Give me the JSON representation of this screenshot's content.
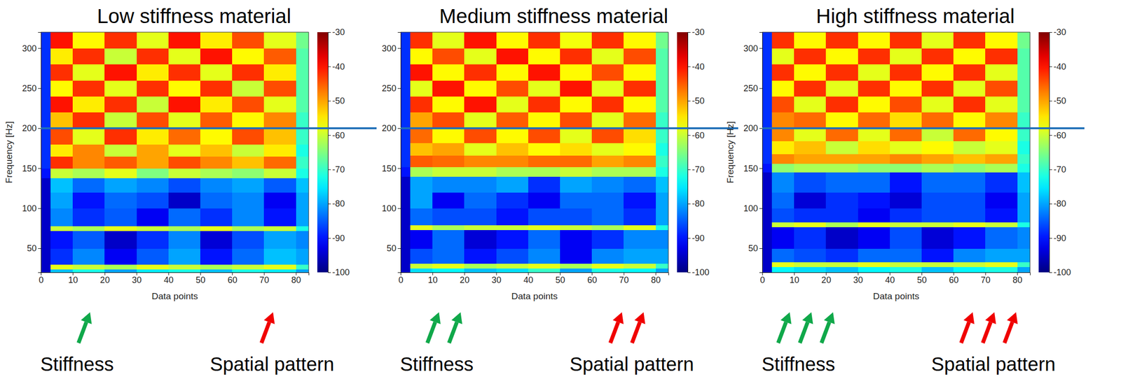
{
  "chart_data": [
    {
      "type": "heatmap",
      "title": "Low stiffness material",
      "x_label": "Data points",
      "y_label": "Frequency [Hz]",
      "xlim": [
        0,
        84
      ],
      "ylim": [
        20,
        320
      ],
      "xticks": [
        0,
        10,
        20,
        30,
        40,
        50,
        60,
        70,
        80
      ],
      "yticks": [
        50,
        100,
        150,
        200,
        250,
        300
      ],
      "x_edges": [
        0,
        3,
        10,
        20,
        30,
        40,
        50,
        60,
        70,
        80,
        84
      ],
      "y_edges": [
        20,
        24,
        30,
        50,
        72,
        78,
        100,
        120,
        138,
        150,
        165,
        180,
        200,
        220,
        240,
        260,
        280,
        300,
        320
      ],
      "cells": [
        [
          -95,
          -78,
          -72,
          -80,
          -75,
          -72,
          -78,
          -72,
          -75,
          -80
        ],
        [
          -95,
          -58,
          -60,
          -62,
          -58,
          -60,
          -62,
          -60,
          -58,
          -70
        ],
        [
          -95,
          -88,
          -82,
          -92,
          -85,
          -80,
          -90,
          -84,
          -78,
          -80
        ],
        [
          -95,
          -90,
          -85,
          -95,
          -88,
          -82,
          -94,
          -86,
          -80,
          -82
        ],
        [
          -95,
          -60,
          -62,
          -58,
          -60,
          -62,
          -58,
          -62,
          -60,
          -72
        ],
        [
          -95,
          -82,
          -88,
          -85,
          -92,
          -84,
          -88,
          -82,
          -90,
          -80
        ],
        [
          -95,
          -80,
          -90,
          -84,
          -86,
          -95,
          -84,
          -82,
          -92,
          -80
        ],
        [
          -95,
          -78,
          -84,
          -80,
          -82,
          -86,
          -82,
          -80,
          -85,
          -78
        ],
        [
          -90,
          -60,
          -62,
          -58,
          -65,
          -60,
          -62,
          -64,
          -60,
          -72
        ],
        [
          -88,
          -42,
          -48,
          -45,
          -50,
          -44,
          -48,
          -52,
          -46,
          -70
        ],
        [
          -88,
          -55,
          -48,
          -60,
          -50,
          -58,
          -52,
          -60,
          -55,
          -72
        ],
        [
          -88,
          -44,
          -58,
          -42,
          -55,
          -46,
          -56,
          -44,
          -52,
          -70
        ],
        [
          -88,
          -52,
          -42,
          -60,
          -44,
          -58,
          -45,
          -56,
          -48,
          -70
        ],
        [
          -88,
          -40,
          -55,
          -42,
          -60,
          -40,
          -55,
          -44,
          -58,
          -68
        ],
        [
          -88,
          -56,
          -42,
          -58,
          -42,
          -56,
          -42,
          -60,
          -44,
          -68
        ],
        [
          -88,
          -42,
          -58,
          -40,
          -55,
          -42,
          -58,
          -42,
          -55,
          -68
        ],
        [
          -88,
          -55,
          -42,
          -60,
          -42,
          -58,
          -40,
          -56,
          -45,
          -68
        ],
        [
          -88,
          -40,
          -56,
          -42,
          -58,
          -40,
          -55,
          -44,
          -58,
          -66
        ]
      ],
      "colorbar_range": [
        -100,
        -30
      ],
      "colorbar_ticks": [
        -100,
        -90,
        -80,
        -70,
        -60,
        -50,
        -40,
        -30
      ],
      "hline": 200,
      "arrows": 1,
      "annotations": [
        "Stiffness",
        "Spatial pattern"
      ]
    },
    {
      "type": "heatmap",
      "title": "Medium stiffness material",
      "x_label": "Data points",
      "xlim": [
        0,
        84
      ],
      "ylim": [
        20,
        320
      ],
      "xticks": [
        0,
        10,
        20,
        30,
        40,
        50,
        60,
        70,
        80
      ],
      "yticks": [
        50,
        100,
        150,
        200,
        250,
        300
      ],
      "x_edges": [
        0,
        3,
        10,
        20,
        30,
        40,
        50,
        60,
        70,
        80,
        84
      ],
      "y_edges": [
        20,
        25,
        31,
        50,
        73,
        79,
        100,
        120,
        140,
        152,
        166,
        182,
        200,
        220,
        240,
        260,
        280,
        300,
        320
      ],
      "cells": [
        [
          -95,
          -76,
          -74,
          -78,
          -76,
          -70,
          -80,
          -72,
          -74,
          -80
        ],
        [
          -95,
          -60,
          -58,
          -62,
          -60,
          -58,
          -62,
          -58,
          -60,
          -70
        ],
        [
          -95,
          -86,
          -84,
          -90,
          -86,
          -82,
          -92,
          -82,
          -80,
          -80
        ],
        [
          -95,
          -92,
          -84,
          -94,
          -90,
          -84,
          -92,
          -88,
          -82,
          -82
        ],
        [
          -95,
          -58,
          -62,
          -60,
          -60,
          -58,
          -60,
          -62,
          -58,
          -72
        ],
        [
          -95,
          -84,
          -86,
          -86,
          -90,
          -86,
          -86,
          -84,
          -88,
          -80
        ],
        [
          -95,
          -80,
          -92,
          -84,
          -88,
          -92,
          -84,
          -84,
          -90,
          -80
        ],
        [
          -95,
          -80,
          -82,
          -82,
          -80,
          -88,
          -80,
          -82,
          -84,
          -78
        ],
        [
          -90,
          -62,
          -60,
          -60,
          -62,
          -62,
          -60,
          -62,
          -62,
          -72
        ],
        [
          -88,
          -45,
          -46,
          -48,
          -48,
          -46,
          -46,
          -50,
          -48,
          -70
        ],
        [
          -88,
          -52,
          -50,
          -58,
          -52,
          -56,
          -54,
          -58,
          -56,
          -72
        ],
        [
          -88,
          -46,
          -56,
          -44,
          -56,
          -44,
          -58,
          -44,
          -54,
          -70
        ],
        [
          -88,
          -50,
          -44,
          -58,
          -45,
          -56,
          -44,
          -58,
          -46,
          -70
        ],
        [
          -88,
          -42,
          -56,
          -40,
          -58,
          -42,
          -56,
          -42,
          -56,
          -68
        ],
        [
          -88,
          -58,
          -40,
          -56,
          -44,
          -58,
          -40,
          -58,
          -42,
          -68
        ],
        [
          -88,
          -40,
          -56,
          -42,
          -56,
          -40,
          -56,
          -44,
          -56,
          -68
        ],
        [
          -88,
          -56,
          -44,
          -58,
          -40,
          -56,
          -42,
          -58,
          -44,
          -68
        ],
        [
          -88,
          -42,
          -58,
          -40,
          -56,
          -42,
          -57,
          -42,
          -56,
          -66
        ]
      ],
      "colorbar_range": [
        -100,
        -30
      ],
      "colorbar_ticks": [
        -100,
        -90,
        -80,
        -70,
        -60,
        -50,
        -40,
        -30
      ],
      "hline": 200,
      "arrows": 2,
      "annotations": [
        "Stiffness",
        "Spatial pattern"
      ]
    },
    {
      "type": "heatmap",
      "title": "High stiffness material",
      "x_label": "Data points",
      "y_label": "Frequency [Hz]",
      "xlim": [
        0,
        84
      ],
      "ylim": [
        20,
        320
      ],
      "xticks": [
        0,
        10,
        20,
        30,
        40,
        50,
        60,
        70,
        80
      ],
      "yticks": [
        50,
        100,
        150,
        200,
        250,
        300
      ],
      "x_edges": [
        0,
        3,
        10,
        20,
        30,
        40,
        50,
        60,
        70,
        80,
        84
      ],
      "y_edges": [
        20,
        27,
        33,
        50,
        77,
        83,
        100,
        120,
        145,
        156,
        168,
        184,
        200,
        220,
        240,
        260,
        280,
        300,
        320
      ],
      "cells": [
        [
          -95,
          -74,
          -76,
          -78,
          -74,
          -72,
          -78,
          -74,
          -72,
          -80
        ],
        [
          -95,
          -58,
          -60,
          -60,
          -58,
          -60,
          -60,
          -60,
          -58,
          -70
        ],
        [
          -95,
          -84,
          -86,
          -88,
          -84,
          -84,
          -90,
          -82,
          -80,
          -80
        ],
        [
          -95,
          -92,
          -88,
          -95,
          -92,
          -86,
          -94,
          -90,
          -84,
          -82
        ],
        [
          -95,
          -60,
          -58,
          -62,
          -58,
          -60,
          -60,
          -58,
          -60,
          -72
        ],
        [
          -95,
          -86,
          -88,
          -88,
          -92,
          -88,
          -86,
          -86,
          -90,
          -80
        ],
        [
          -95,
          -84,
          -94,
          -88,
          -90,
          -94,
          -86,
          -86,
          -92,
          -80
        ],
        [
          -95,
          -82,
          -86,
          -84,
          -84,
          -90,
          -84,
          -84,
          -88,
          -78
        ],
        [
          -90,
          -64,
          -62,
          -62,
          -64,
          -64,
          -62,
          -64,
          -62,
          -72
        ],
        [
          -88,
          -48,
          -50,
          -50,
          -50,
          -48,
          -50,
          -52,
          -50,
          -70
        ],
        [
          -88,
          -55,
          -52,
          -60,
          -54,
          -58,
          -56,
          -60,
          -58,
          -72
        ],
        [
          -88,
          -48,
          -58,
          -46,
          -58,
          -46,
          -60,
          -46,
          -56,
          -70
        ],
        [
          -88,
          -48,
          -46,
          -56,
          -46,
          -54,
          -46,
          -56,
          -48,
          -70
        ],
        [
          -88,
          -44,
          -58,
          -42,
          -56,
          -44,
          -58,
          -42,
          -58,
          -68
        ],
        [
          -88,
          -56,
          -42,
          -58,
          -42,
          -56,
          -42,
          -58,
          -44,
          -68
        ],
        [
          -88,
          -42,
          -56,
          -42,
          -58,
          -42,
          -56,
          -42,
          -58,
          -68
        ],
        [
          -88,
          -58,
          -42,
          -56,
          -42,
          -58,
          -42,
          -56,
          -42,
          -68
        ],
        [
          -88,
          -42,
          -56,
          -42,
          -56,
          -42,
          -58,
          -42,
          -56,
          -66
        ]
      ],
      "colorbar_range": [
        -100,
        -30
      ],
      "colorbar_ticks": [
        -100,
        -90,
        -80,
        -70,
        -60,
        -50,
        -40,
        -30
      ],
      "hline": 200,
      "arrows": 3,
      "annotations": [
        "Stiffness",
        "Spatial pattern"
      ]
    }
  ]
}
